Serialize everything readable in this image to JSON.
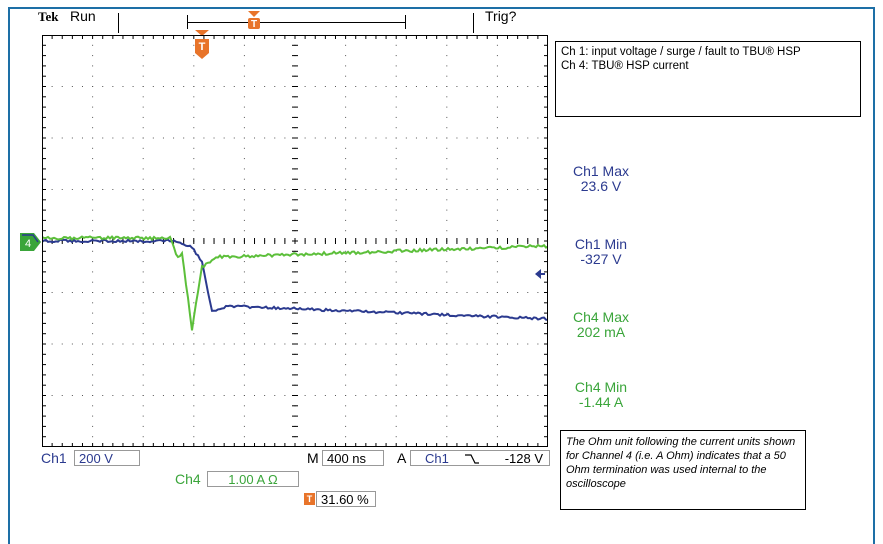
{
  "header": {
    "brand": "Tek",
    "status": "Run",
    "trigger_status": "Trig?"
  },
  "note_top": {
    "line1": "Ch 1:  input voltage / surge / fault to TBU® HSP",
    "line2": "Ch 4:  TBU® HSP current"
  },
  "measurements": [
    {
      "label": "Ch1 Max",
      "value": "23.6 V",
      "color": "#2b3a8f"
    },
    {
      "label": "Ch1 Min",
      "value": "-327 V",
      "color": "#2b3a8f"
    },
    {
      "label": "Ch4 Max",
      "value": "202 mA",
      "color": "#3aa53a"
    },
    {
      "label": "Ch4 Min",
      "value": "-1.44 A",
      "color": "#3aa53a"
    }
  ],
  "bottom": {
    "ch1_label": "Ch1",
    "ch1_scale": "200 V",
    "timebase_label": "M",
    "timebase": "400 ns",
    "acq_label": "A",
    "trig_source": "Ch1",
    "trig_slope_icon": "falling-edge-icon",
    "trig_level": "-128 V",
    "ch4_label": "Ch4",
    "ch4_scale": "1.00 A Ω",
    "trig_marker": "T",
    "trig_position": "31.60 %"
  },
  "note_bottom": {
    "text": "The Ohm unit following the current units shown for Channel 4 (i.e. A Ohm) indicates that a 50 Ohm termination was used internal to the oscilloscope"
  },
  "markers": {
    "trigger_marker": "T",
    "ch4_marker": "4"
  },
  "colors": {
    "ch1": "#2b3a8f",
    "ch4": "#5cbf3a",
    "trigger": "#e8742a",
    "frame": "#1d6fa6"
  }
}
